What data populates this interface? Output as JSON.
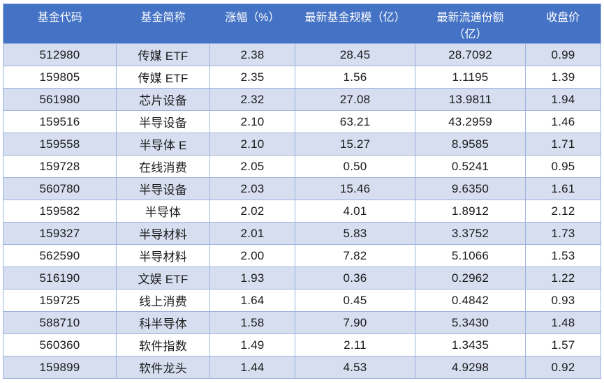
{
  "colors": {
    "header_bg": "#4472C4",
    "header_fg": "#FFFFFF",
    "band_bg": "#D6DEF0",
    "border": "#9DB3DE",
    "body_fg": "#1A1A1A",
    "page_bg": "#FFFFFF"
  },
  "chart_data": {
    "type": "table",
    "columns": [
      {
        "key": "fund_code",
        "label": "基金代码"
      },
      {
        "key": "fund_name",
        "label": "基金简称"
      },
      {
        "key": "change_pct",
        "label": "涨幅（%）"
      },
      {
        "key": "fund_size",
        "label": "最新基金规模（亿）"
      },
      {
        "key": "circulating_shares",
        "label": "最新流通份额（亿）"
      },
      {
        "key": "close_price",
        "label": "收盘价"
      }
    ],
    "rows": [
      [
        "512980",
        "传媒 ETF",
        "2.38",
        "28.45",
        "28.7092",
        "0.99"
      ],
      [
        "159805",
        "传媒 ETF",
        "2.35",
        "1.56",
        "1.1195",
        "1.39"
      ],
      [
        "561980",
        "芯片设备",
        "2.32",
        "27.08",
        "13.9811",
        "1.94"
      ],
      [
        "159516",
        "半导设备",
        "2.10",
        "63.21",
        "43.2959",
        "1.46"
      ],
      [
        "159558",
        "半导体 E",
        "2.10",
        "15.27",
        "8.9585",
        "1.71"
      ],
      [
        "159728",
        "在线消费",
        "2.05",
        "0.50",
        "0.5241",
        "0.95"
      ],
      [
        "560780",
        "半导设备",
        "2.03",
        "15.46",
        "9.6350",
        "1.61"
      ],
      [
        "159582",
        "半导体",
        "2.02",
        "4.01",
        "1.8912",
        "2.12"
      ],
      [
        "159327",
        "半导材料",
        "2.01",
        "5.83",
        "3.3752",
        "1.73"
      ],
      [
        "562590",
        "半导材料",
        "2.00",
        "7.82",
        "5.1066",
        "1.53"
      ],
      [
        "516190",
        "文娱 ETF",
        "1.93",
        "0.36",
        "0.2962",
        "1.22"
      ],
      [
        "159725",
        "线上消费",
        "1.64",
        "0.45",
        "0.4842",
        "0.93"
      ],
      [
        "588710",
        "科半导体",
        "1.58",
        "7.90",
        "5.3430",
        "1.48"
      ],
      [
        "560360",
        "软件指数",
        "1.49",
        "2.11",
        "1.3435",
        "1.57"
      ],
      [
        "159899",
        "软件龙头",
        "1.44",
        "4.53",
        "4.9298",
        "0.92"
      ]
    ]
  }
}
